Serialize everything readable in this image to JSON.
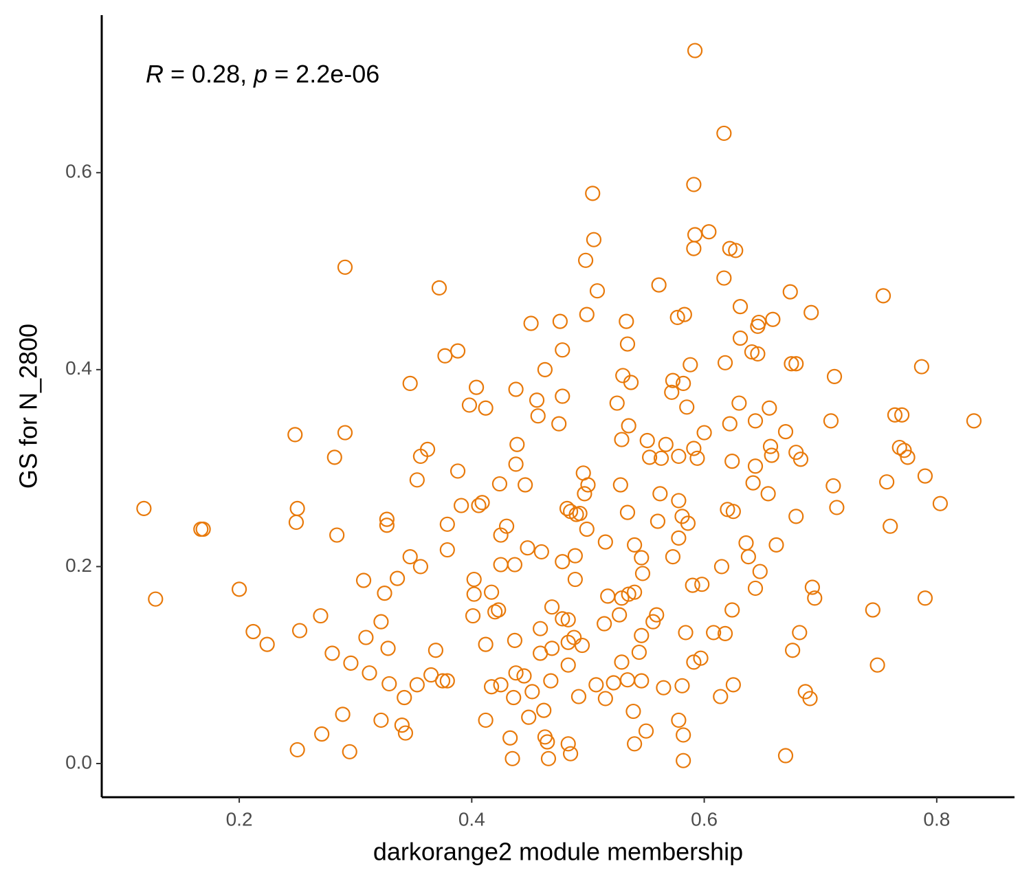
{
  "chart_data": {
    "type": "scatter",
    "annotation": [
      "R",
      " = 0.28, ",
      "p",
      " = 2.2e-06"
    ],
    "xlabel": "darkorange2 module membership",
    "ylabel": "GS for N_2800",
    "color": "#E8790A",
    "xlim": [
      0.0817,
      0.8669
    ],
    "ylim": [
      -0.0342,
      0.76
    ],
    "xticks": [
      0.2,
      0.4,
      0.6,
      0.8
    ],
    "yticks": [
      {
        "value": 0,
        "label": "0.0"
      },
      0.2,
      0.4,
      0.6
    ],
    "x": [
      0.592,
      0.617,
      0.591,
      0.504,
      0.505,
      0.604,
      0.592,
      0.591,
      0.622,
      0.627,
      0.291,
      0.498,
      0.617,
      0.561,
      0.372,
      0.508,
      0.674,
      0.754,
      0.631,
      0.499,
      0.583,
      0.577,
      0.692,
      0.659,
      0.451,
      0.476,
      0.533,
      0.647,
      0.646,
      0.534,
      0.631,
      0.478,
      0.388,
      0.377,
      0.641,
      0.646,
      0.618,
      0.588,
      0.675,
      0.679,
      0.787,
      0.463,
      0.53,
      0.712,
      0.537,
      0.347,
      0.573,
      0.582,
      0.404,
      0.438,
      0.572,
      0.478,
      0.456,
      0.398,
      0.412,
      0.525,
      0.63,
      0.585,
      0.656,
      0.457,
      0.764,
      0.77,
      0.832,
      0.709,
      0.644,
      0.622,
      0.475,
      0.535,
      0.248,
      0.291,
      0.6,
      0.67,
      0.551,
      0.529,
      0.439,
      0.567,
      0.657,
      0.591,
      0.679,
      0.768,
      0.772,
      0.775,
      0.683,
      0.362,
      0.356,
      0.282,
      0.553,
      0.563,
      0.578,
      0.594,
      0.624,
      0.658,
      0.438,
      0.644,
      0.388,
      0.496,
      0.79,
      0.353,
      0.5,
      0.757,
      0.642,
      0.424,
      0.446,
      0.528,
      0.711,
      0.497,
      0.562,
      0.655,
      0.578,
      0.409,
      0.406,
      0.391,
      0.118,
      0.25,
      0.803,
      0.714,
      0.482,
      0.485,
      0.534,
      0.62,
      0.625,
      0.49,
      0.493,
      0.581,
      0.679,
      0.327,
      0.327,
      0.249,
      0.56,
      0.586,
      0.379,
      0.43,
      0.76,
      0.167,
      0.169,
      0.499,
      0.284,
      0.425,
      0.578,
      0.515,
      0.636,
      0.54,
      0.662,
      0.448,
      0.379,
      0.46,
      0.347,
      0.489,
      0.546,
      0.573,
      0.638,
      0.478,
      0.425,
      0.437,
      0.356,
      0.615,
      0.547,
      0.648,
      0.336,
      0.307,
      0.402,
      0.489,
      0.59,
      0.598,
      0.2,
      0.693,
      0.644,
      0.417,
      0.402,
      0.325,
      0.54,
      0.535,
      0.517,
      0.529,
      0.695,
      0.79,
      0.128,
      0.469,
      0.423,
      0.42,
      0.624,
      0.745,
      0.559,
      0.527,
      0.401,
      0.27,
      0.478,
      0.483,
      0.322,
      0.556,
      0.514,
      0.459,
      0.608,
      0.618,
      0.584,
      0.682,
      0.212,
      0.252,
      0.546,
      0.488,
      0.309,
      0.437,
      0.483,
      0.224,
      0.412,
      0.495,
      0.469,
      0.328,
      0.369,
      0.544,
      0.676,
      0.28,
      0.459,
      0.597,
      0.591,
      0.529,
      0.296,
      0.483,
      0.749,
      0.312,
      0.438,
      0.445,
      0.365,
      0.375,
      0.379,
      0.468,
      0.534,
      0.546,
      0.329,
      0.353,
      0.425,
      0.417,
      0.507,
      0.522,
      0.625,
      0.565,
      0.581,
      0.452,
      0.687,
      0.691,
      0.342,
      0.436,
      0.492,
      0.515,
      0.614,
      0.462,
      0.539,
      0.289,
      0.322,
      0.412,
      0.449,
      0.578,
      0.34,
      0.343,
      0.271,
      0.55,
      0.433,
      0.463,
      0.465,
      0.582,
      0.483,
      0.54,
      0.25,
      0.295,
      0.485,
      0.67,
      0.435,
      0.466,
      0.582
    ],
    "values": [
      0.724,
      0.64,
      0.588,
      0.579,
      0.532,
      0.54,
      0.537,
      0.523,
      0.523,
      0.521,
      0.504,
      0.511,
      0.493,
      0.486,
      0.483,
      0.48,
      0.479,
      0.475,
      0.464,
      0.456,
      0.456,
      0.453,
      0.458,
      0.451,
      0.447,
      0.449,
      0.449,
      0.448,
      0.444,
      0.426,
      0.432,
      0.42,
      0.419,
      0.414,
      0.418,
      0.416,
      0.407,
      0.405,
      0.406,
      0.406,
      0.403,
      0.4,
      0.394,
      0.393,
      0.387,
      0.386,
      0.389,
      0.386,
      0.382,
      0.38,
      0.377,
      0.373,
      0.369,
      0.364,
      0.361,
      0.366,
      0.366,
      0.362,
      0.361,
      0.353,
      0.354,
      0.354,
      0.348,
      0.348,
      0.348,
      0.345,
      0.345,
      0.343,
      0.334,
      0.336,
      0.336,
      0.337,
      0.328,
      0.329,
      0.324,
      0.324,
      0.322,
      0.32,
      0.316,
      0.321,
      0.318,
      0.311,
      0.309,
      0.319,
      0.312,
      0.311,
      0.311,
      0.31,
      0.312,
      0.31,
      0.307,
      0.313,
      0.304,
      0.302,
      0.297,
      0.295,
      0.292,
      0.288,
      0.283,
      0.286,
      0.285,
      0.284,
      0.283,
      0.283,
      0.282,
      0.274,
      0.274,
      0.274,
      0.267,
      0.265,
      0.262,
      0.262,
      0.259,
      0.259,
      0.264,
      0.26,
      0.259,
      0.256,
      0.255,
      0.258,
      0.256,
      0.253,
      0.254,
      0.251,
      0.251,
      0.248,
      0.242,
      0.245,
      0.246,
      0.244,
      0.243,
      0.241,
      0.241,
      0.238,
      0.238,
      0.238,
      0.232,
      0.232,
      0.229,
      0.225,
      0.224,
      0.222,
      0.222,
      0.219,
      0.217,
      0.215,
      0.21,
      0.211,
      0.209,
      0.21,
      0.21,
      0.205,
      0.202,
      0.202,
      0.2,
      0.2,
      0.193,
      0.195,
      0.188,
      0.186,
      0.187,
      0.187,
      0.181,
      0.182,
      0.177,
      0.179,
      0.178,
      0.174,
      0.172,
      0.173,
      0.174,
      0.172,
      0.17,
      0.168,
      0.168,
      0.168,
      0.167,
      0.159,
      0.156,
      0.154,
      0.156,
      0.156,
      0.151,
      0.151,
      0.15,
      0.15,
      0.147,
      0.146,
      0.144,
      0.144,
      0.142,
      0.137,
      0.133,
      0.132,
      0.133,
      0.133,
      0.134,
      0.135,
      0.13,
      0.128,
      0.128,
      0.125,
      0.123,
      0.121,
      0.121,
      0.12,
      0.117,
      0.117,
      0.115,
      0.113,
      0.115,
      0.112,
      0.112,
      0.107,
      0.103,
      0.103,
      0.102,
      0.1,
      0.1,
      0.092,
      0.092,
      0.089,
      0.09,
      0.084,
      0.084,
      0.084,
      0.085,
      0.084,
      0.081,
      0.08,
      0.08,
      0.078,
      0.08,
      0.082,
      0.08,
      0.077,
      0.079,
      0.073,
      0.073,
      0.066,
      0.067,
      0.067,
      0.068,
      0.066,
      0.068,
      0.054,
      0.053,
      0.05,
      0.044,
      0.044,
      0.047,
      0.044,
      0.039,
      0.031,
      0.03,
      0.033,
      0.026,
      0.027,
      0.022,
      0.029,
      0.02,
      0.02,
      0.014,
      0.012,
      0.01,
      0.008,
      0.005,
      0.005,
      0.003
    ]
  }
}
